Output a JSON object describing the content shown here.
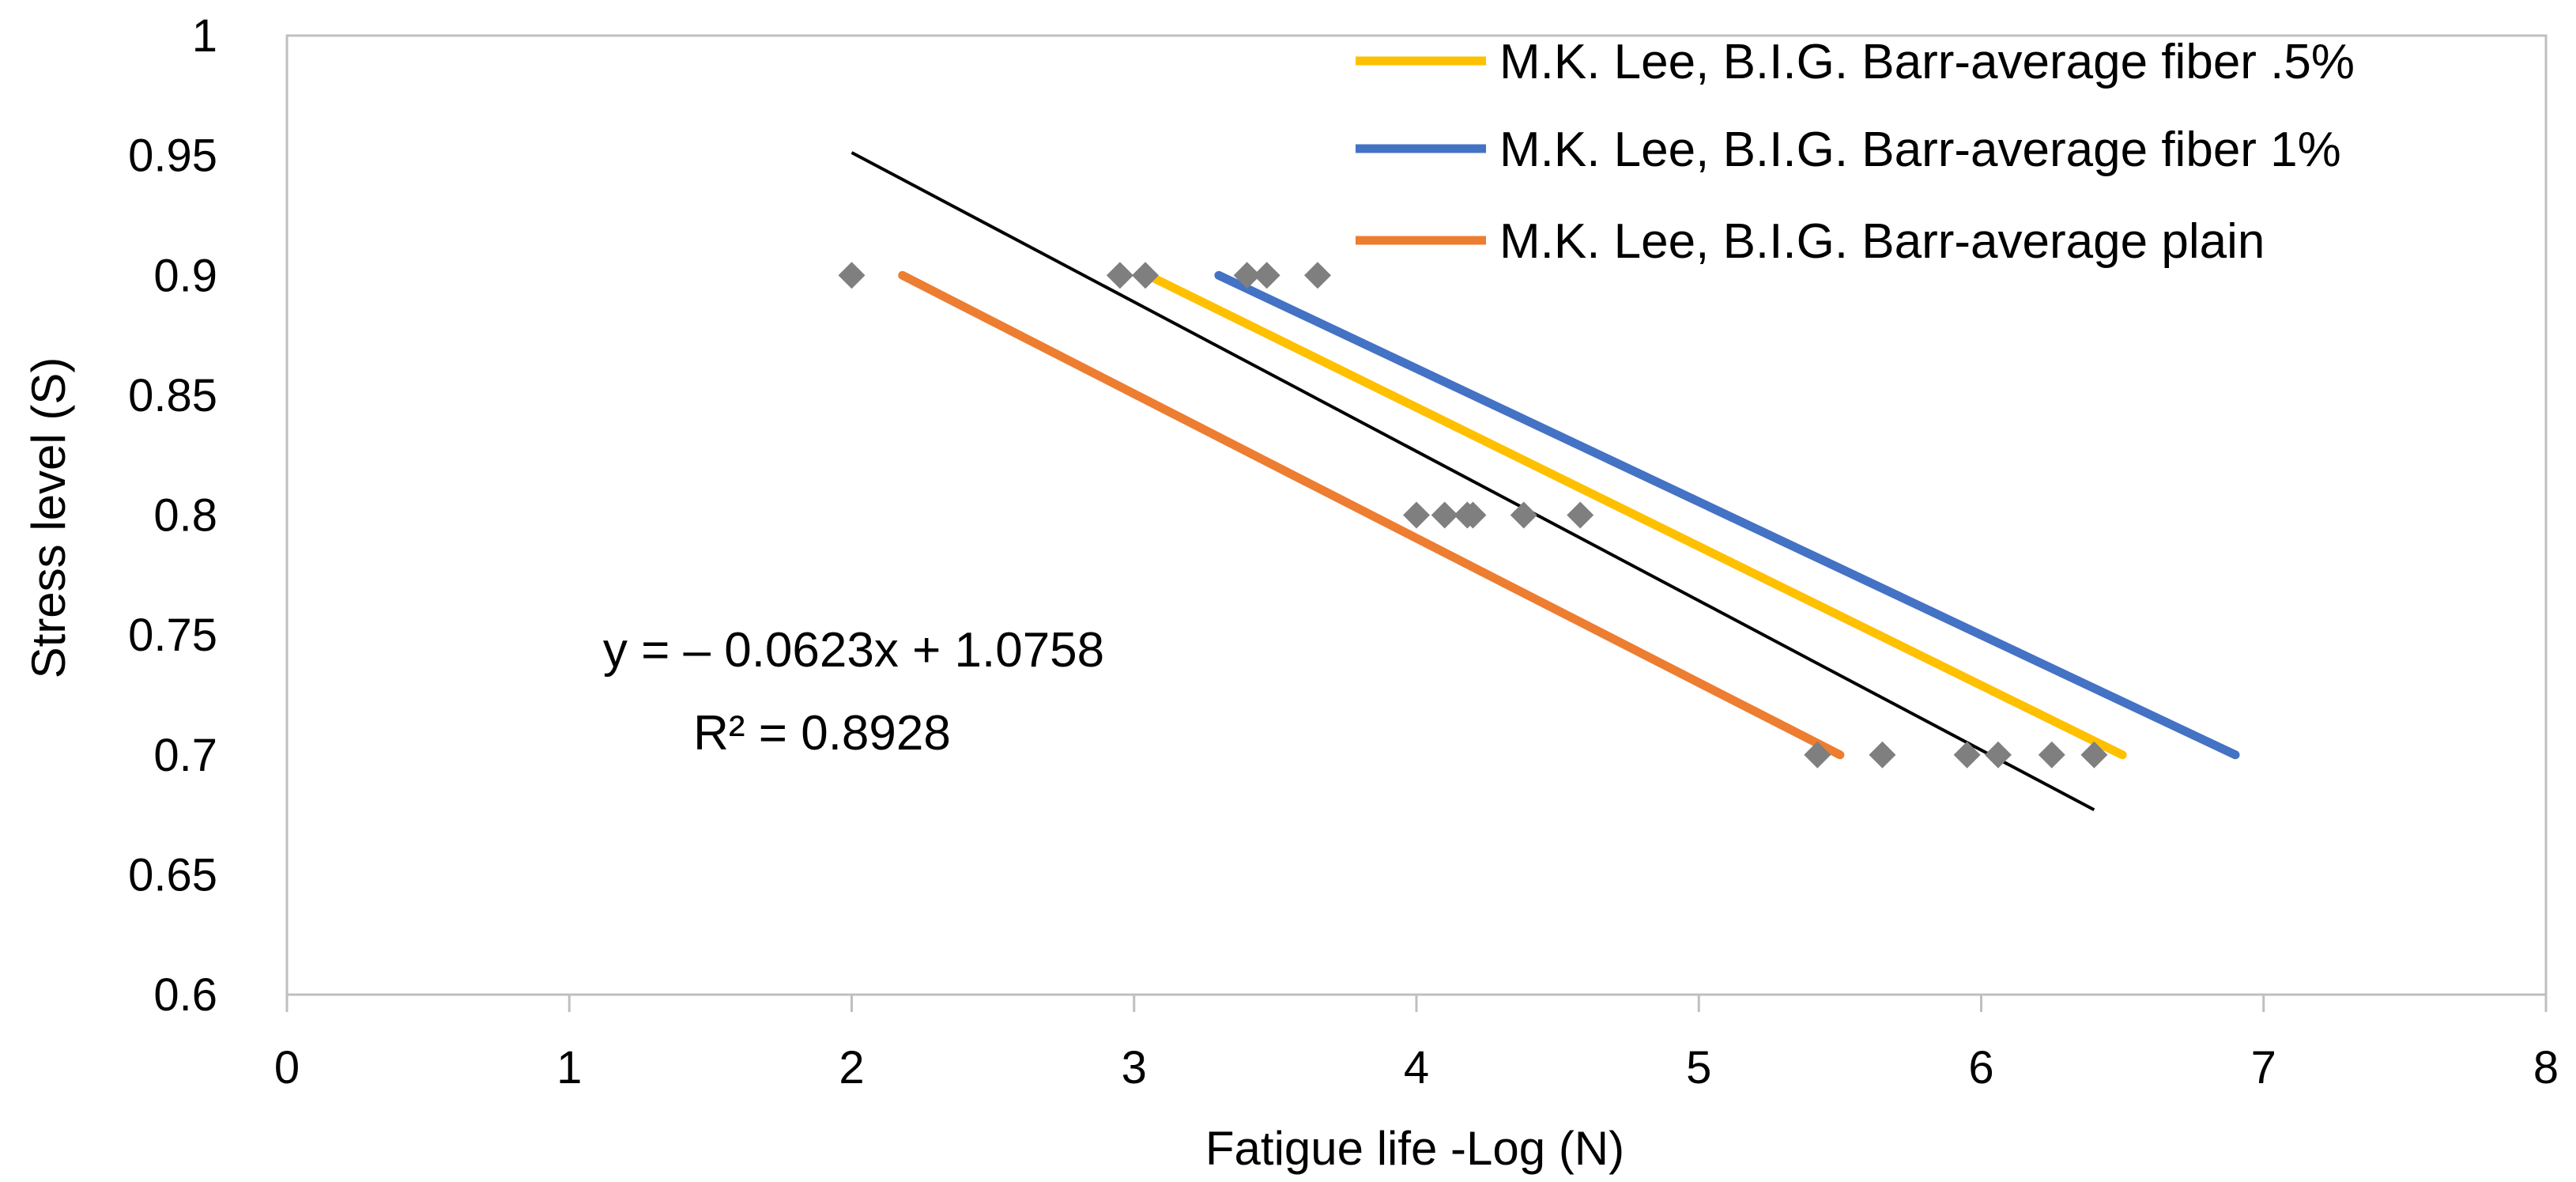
{
  "chart_data": {
    "type": "scatter",
    "title": "",
    "xlabel": "Fatigue life -Log (N)",
    "ylabel": "Stress level (S)",
    "xlim": [
      0,
      8
    ],
    "ylim": [
      0.6,
      1
    ],
    "x_ticks": [
      0,
      1,
      2,
      3,
      4,
      5,
      6,
      7,
      8
    ],
    "y_ticks": [
      0.6,
      0.65,
      0.7,
      0.75,
      0.8,
      0.85,
      0.9,
      0.95,
      1
    ],
    "x_tick_labels": [
      "0",
      "1",
      "2",
      "3",
      "4",
      "5",
      "6",
      "7",
      "8"
    ],
    "y_tick_labels": [
      "0.6",
      "0.65",
      "0.7",
      "0.75",
      "0.8",
      "0.85",
      "0.9",
      "0.95",
      "1"
    ],
    "grid": false,
    "legend_position": "top-right",
    "scatter_points": {
      "color": "#7f7f7f",
      "marker": "diamond",
      "x": [
        2.0,
        2.95,
        3.04,
        3.4,
        3.47,
        3.65,
        4.0,
        4.1,
        4.18,
        4.2,
        4.38,
        4.58,
        5.42,
        5.65,
        5.95,
        6.06,
        6.25,
        6.4
      ],
      "y": [
        0.9,
        0.9,
        0.9,
        0.9,
        0.9,
        0.9,
        0.8,
        0.8,
        0.8,
        0.8,
        0.8,
        0.8,
        0.7,
        0.7,
        0.7,
        0.7,
        0.7,
        0.7
      ]
    },
    "series": [
      {
        "name": "M.K. Lee, B.I.G. Barr-average fiber .5%",
        "color": "#ffc000",
        "x": [
          3.05,
          6.5
        ],
        "y": [
          0.9,
          0.7
        ]
      },
      {
        "name": "M.K. Lee, B.I.G. Barr-average fiber 1%",
        "color": "#4472c4",
        "x": [
          3.3,
          6.9
        ],
        "y": [
          0.9,
          0.7
        ]
      },
      {
        "name": "M.K. Lee, B.I.G. Barr-average plain",
        "color": "#ed7d31",
        "x": [
          2.18,
          5.5
        ],
        "y": [
          0.9,
          0.7
        ]
      }
    ],
    "trendline": {
      "color": "#000000",
      "slope": -0.0623,
      "intercept": 1.0758,
      "x_range": [
        2.0,
        6.4
      ],
      "equation": "y = – 0.0623x + 1.0758",
      "r_squared": "R² = 0.8928"
    }
  }
}
